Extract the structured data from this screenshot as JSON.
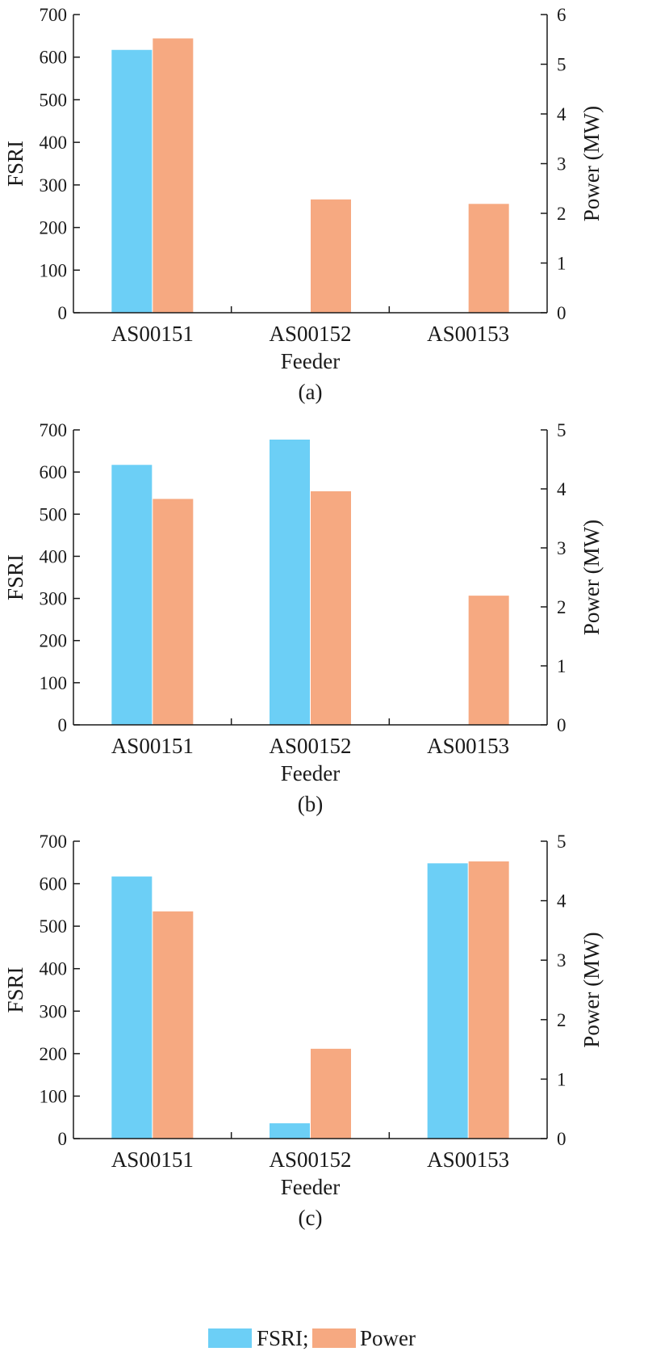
{
  "chart_data": [
    {
      "type": "bar",
      "caption": "(a)",
      "categories": [
        "AS00151",
        "AS00152",
        "AS00153"
      ],
      "xlabel": "Feeder",
      "ylabel": "FSRI",
      "y2label": "Power (MW)",
      "ylim": [
        0,
        700
      ],
      "yticks": [
        0,
        100,
        200,
        300,
        400,
        500,
        600,
        700
      ],
      "y2lim": [
        0,
        6
      ],
      "y2ticks": [
        0,
        1,
        2,
        3,
        4,
        5,
        6
      ],
      "series": [
        {
          "name": "FSRI",
          "axis": "left",
          "color": "#6ccff6",
          "values": [
            617,
            0,
            0
          ]
        },
        {
          "name": "Power",
          "axis": "right",
          "color": "#f6a981",
          "values": [
            5.52,
            2.28,
            2.19
          ]
        }
      ]
    },
    {
      "type": "bar",
      "caption": "(b)",
      "categories": [
        "AS00151",
        "AS00152",
        "AS00153"
      ],
      "xlabel": "Feeder",
      "ylabel": "FSRI",
      "y2label": "Power (MW)",
      "ylim": [
        0,
        700
      ],
      "yticks": [
        0,
        100,
        200,
        300,
        400,
        500,
        600,
        700
      ],
      "y2lim": [
        0,
        5
      ],
      "y2ticks": [
        0,
        1,
        2,
        3,
        4,
        5
      ],
      "series": [
        {
          "name": "FSRI",
          "axis": "left",
          "color": "#6ccff6",
          "values": [
            617,
            677,
            0
          ]
        },
        {
          "name": "Power",
          "axis": "right",
          "color": "#f6a981",
          "values": [
            3.83,
            3.96,
            2.19
          ]
        }
      ]
    },
    {
      "type": "bar",
      "caption": "(c)",
      "categories": [
        "AS00151",
        "AS00152",
        "AS00153"
      ],
      "xlabel": "Feeder",
      "ylabel": "FSRI",
      "y2label": "Power (MW)",
      "ylim": [
        0,
        700
      ],
      "yticks": [
        0,
        100,
        200,
        300,
        400,
        500,
        600,
        700
      ],
      "y2lim": [
        0,
        5
      ],
      "y2ticks": [
        0,
        1,
        2,
        3,
        4,
        5
      ],
      "series": [
        {
          "name": "FSRI",
          "axis": "left",
          "color": "#6ccff6",
          "values": [
            617,
            36,
            648
          ]
        },
        {
          "name": "Power",
          "axis": "right",
          "color": "#f6a981",
          "values": [
            3.82,
            1.51,
            4.66
          ]
        }
      ]
    }
  ],
  "legend": {
    "items": [
      {
        "label": "FSRI;",
        "color": "#6ccff6"
      },
      {
        "label": "Power",
        "color": "#f6a981"
      }
    ]
  }
}
